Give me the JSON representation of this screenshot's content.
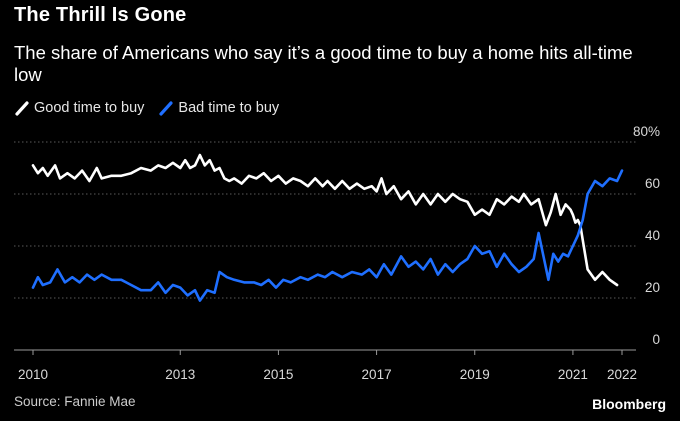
{
  "title": "The Thrill Is Gone",
  "subtitle": "The share of Americans who say it’s a good time to buy a home hits all-time low",
  "source": "Source: Fannie Mae",
  "brand": "Bloomberg",
  "chart_data": {
    "type": "line",
    "title": "The Thrill Is Gone",
    "xlabel": "",
    "ylabel": "",
    "x_ticks": [
      "2010",
      "2013",
      "2015",
      "2017",
      "2019",
      "2021",
      "2022"
    ],
    "x_tick_values": [
      2010.0,
      2013.0,
      2015.0,
      2017.0,
      2019.0,
      2021.0,
      2022.0
    ],
    "y_ticks": [
      "0",
      "20",
      "40",
      "60",
      "80%"
    ],
    "y_tick_values": [
      0,
      20,
      40,
      60,
      80
    ],
    "ylim": [
      0,
      80
    ],
    "xlim": [
      2010.0,
      2022.0
    ],
    "grid": true,
    "legend_position": "top-left",
    "series": [
      {
        "name": "Good time to buy",
        "color": "#ffffff",
        "points": [
          [
            2010.0,
            71
          ],
          [
            2010.1,
            68
          ],
          [
            2010.2,
            70
          ],
          [
            2010.3,
            67
          ],
          [
            2010.45,
            71
          ],
          [
            2010.55,
            66
          ],
          [
            2010.7,
            68
          ],
          [
            2010.85,
            66
          ],
          [
            2011.0,
            69
          ],
          [
            2011.15,
            65
          ],
          [
            2011.3,
            70
          ],
          [
            2011.4,
            66
          ],
          [
            2011.6,
            67
          ],
          [
            2011.8,
            67
          ],
          [
            2012.0,
            68
          ],
          [
            2012.2,
            70
          ],
          [
            2012.4,
            69
          ],
          [
            2012.55,
            71
          ],
          [
            2012.7,
            70
          ],
          [
            2012.85,
            72
          ],
          [
            2013.0,
            70
          ],
          [
            2013.1,
            73
          ],
          [
            2013.2,
            70
          ],
          [
            2013.3,
            71
          ],
          [
            2013.4,
            75
          ],
          [
            2013.5,
            71
          ],
          [
            2013.6,
            73
          ],
          [
            2013.7,
            69
          ],
          [
            2013.8,
            70
          ],
          [
            2013.9,
            66
          ],
          [
            2014.0,
            65
          ],
          [
            2014.1,
            66
          ],
          [
            2014.25,
            64
          ],
          [
            2014.4,
            67
          ],
          [
            2014.55,
            66
          ],
          [
            2014.7,
            68
          ],
          [
            2014.85,
            65
          ],
          [
            2015.0,
            67
          ],
          [
            2015.15,
            64
          ],
          [
            2015.3,
            66
          ],
          [
            2015.45,
            65
          ],
          [
            2015.6,
            63
          ],
          [
            2015.75,
            66
          ],
          [
            2015.9,
            63
          ],
          [
            2016.0,
            65
          ],
          [
            2016.15,
            62
          ],
          [
            2016.3,
            65
          ],
          [
            2016.45,
            62
          ],
          [
            2016.6,
            64
          ],
          [
            2016.75,
            62
          ],
          [
            2016.9,
            63
          ],
          [
            2017.0,
            61
          ],
          [
            2017.1,
            66
          ],
          [
            2017.2,
            60
          ],
          [
            2017.35,
            63
          ],
          [
            2017.5,
            58
          ],
          [
            2017.65,
            61
          ],
          [
            2017.8,
            56
          ],
          [
            2017.95,
            60
          ],
          [
            2018.1,
            56
          ],
          [
            2018.25,
            60
          ],
          [
            2018.4,
            57
          ],
          [
            2018.55,
            60
          ],
          [
            2018.7,
            58
          ],
          [
            2018.85,
            57
          ],
          [
            2019.0,
            52
          ],
          [
            2019.15,
            54
          ],
          [
            2019.3,
            52
          ],
          [
            2019.45,
            58
          ],
          [
            2019.6,
            56
          ],
          [
            2019.75,
            59
          ],
          [
            2019.9,
            57
          ],
          [
            2020.0,
            60
          ],
          [
            2020.15,
            56
          ],
          [
            2020.3,
            58
          ],
          [
            2020.45,
            48
          ],
          [
            2020.55,
            53
          ],
          [
            2020.65,
            60
          ],
          [
            2020.75,
            52
          ],
          [
            2020.85,
            56
          ],
          [
            2020.95,
            54
          ],
          [
            2021.0,
            52
          ],
          [
            2021.05,
            49
          ],
          [
            2021.1,
            50
          ],
          [
            2021.15,
            48
          ],
          [
            2021.3,
            31
          ],
          [
            2021.45,
            27
          ],
          [
            2021.6,
            30
          ],
          [
            2021.75,
            27
          ],
          [
            2021.9,
            25
          ]
        ]
      },
      {
        "name": "Bad time to buy",
        "color": "#1f6fff",
        "points": [
          [
            2010.0,
            24
          ],
          [
            2010.1,
            28
          ],
          [
            2010.2,
            25
          ],
          [
            2010.35,
            26
          ],
          [
            2010.5,
            31
          ],
          [
            2010.65,
            26
          ],
          [
            2010.8,
            28
          ],
          [
            2010.95,
            26
          ],
          [
            2011.1,
            29
          ],
          [
            2011.25,
            27
          ],
          [
            2011.4,
            29
          ],
          [
            2011.6,
            27
          ],
          [
            2011.8,
            27
          ],
          [
            2012.0,
            25
          ],
          [
            2012.2,
            23
          ],
          [
            2012.4,
            23
          ],
          [
            2012.55,
            26
          ],
          [
            2012.7,
            22
          ],
          [
            2012.85,
            25
          ],
          [
            2013.0,
            24
          ],
          [
            2013.15,
            21
          ],
          [
            2013.3,
            23
          ],
          [
            2013.4,
            19
          ],
          [
            2013.55,
            23
          ],
          [
            2013.7,
            22
          ],
          [
            2013.8,
            30
          ],
          [
            2013.95,
            28
          ],
          [
            2014.1,
            27
          ],
          [
            2014.3,
            26
          ],
          [
            2014.5,
            26
          ],
          [
            2014.65,
            25
          ],
          [
            2014.8,
            27
          ],
          [
            2014.95,
            24
          ],
          [
            2015.1,
            27
          ],
          [
            2015.25,
            26
          ],
          [
            2015.45,
            28
          ],
          [
            2015.6,
            27
          ],
          [
            2015.8,
            29
          ],
          [
            2015.95,
            28
          ],
          [
            2016.1,
            30
          ],
          [
            2016.3,
            28
          ],
          [
            2016.5,
            30
          ],
          [
            2016.7,
            29
          ],
          [
            2016.85,
            31
          ],
          [
            2017.0,
            28
          ],
          [
            2017.15,
            33
          ],
          [
            2017.3,
            29
          ],
          [
            2017.5,
            36
          ],
          [
            2017.65,
            32
          ],
          [
            2017.8,
            34
          ],
          [
            2017.95,
            31
          ],
          [
            2018.1,
            35
          ],
          [
            2018.25,
            29
          ],
          [
            2018.4,
            33
          ],
          [
            2018.55,
            30
          ],
          [
            2018.7,
            33
          ],
          [
            2018.85,
            35
          ],
          [
            2019.0,
            40
          ],
          [
            2019.15,
            37
          ],
          [
            2019.3,
            38
          ],
          [
            2019.45,
            32
          ],
          [
            2019.6,
            37
          ],
          [
            2019.75,
            33
          ],
          [
            2019.9,
            30
          ],
          [
            2020.05,
            32
          ],
          [
            2020.2,
            35
          ],
          [
            2020.3,
            45
          ],
          [
            2020.4,
            36
          ],
          [
            2020.5,
            27
          ],
          [
            2020.6,
            37
          ],
          [
            2020.7,
            34
          ],
          [
            2020.8,
            37
          ],
          [
            2020.9,
            36
          ],
          [
            2021.0,
            40
          ],
          [
            2021.1,
            44
          ],
          [
            2021.2,
            50
          ],
          [
            2021.3,
            60
          ],
          [
            2021.45,
            65
          ],
          [
            2021.6,
            63
          ],
          [
            2021.75,
            66
          ],
          [
            2021.9,
            65
          ],
          [
            2022.0,
            69
          ]
        ]
      }
    ]
  }
}
